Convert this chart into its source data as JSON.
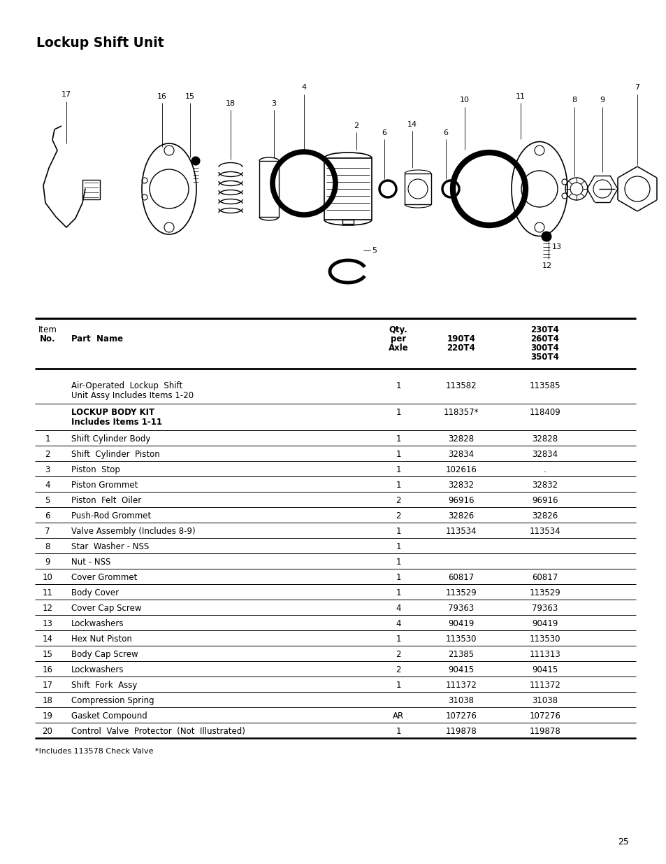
{
  "title": "Lockup Shift Unit",
  "page_number": "25",
  "footnote": "*Includes 113578 Check Valve",
  "rows": [
    {
      "item": "",
      "name": "Air-Operated  Lockup  Shift\nUnit Assy Includes Items 1-20",
      "qty": "1",
      "col4": "113582",
      "col5": "113585",
      "name_bold": false
    },
    {
      "item": "",
      "name": "LOCKUP BODY KIT\nIncludes Items 1-11",
      "qty": "1",
      "col4": "118357*",
      "col5": "118409",
      "name_bold": true
    },
    {
      "item": "1",
      "name": "Shift Cylinder Body",
      "qty": "1",
      "col4": "32828",
      "col5": "32828",
      "name_bold": false
    },
    {
      "item": "2",
      "name": "Shift  Cylinder  Piston",
      "qty": "1",
      "col4": "32834",
      "col5": "32834",
      "name_bold": false
    },
    {
      "item": "3",
      "name": "Piston  Stop",
      "qty": "1",
      "col4": "102616",
      "col5": ".",
      "name_bold": false
    },
    {
      "item": "4",
      "name": "Piston Grommet",
      "qty": "1",
      "col4": "32832",
      "col5": "32832",
      "name_bold": false
    },
    {
      "item": "5",
      "name": "Piston  Felt  Oiler",
      "qty": "2",
      "col4": "96916",
      "col5": "96916",
      "name_bold": false
    },
    {
      "item": "6",
      "name": "Push-Rod Grommet",
      "qty": "2",
      "col4": "32826",
      "col5": "32826",
      "name_bold": false
    },
    {
      "item": "7",
      "name": "Valve Assembly (Includes 8-9)",
      "qty": "1",
      "col4": "113534",
      "col5": "113534",
      "name_bold": false
    },
    {
      "item": "8",
      "name": "Star  Washer - NSS",
      "qty": "1",
      "col4": "",
      "col5": "",
      "name_bold": false
    },
    {
      "item": "9",
      "name": "Nut - NSS",
      "qty": "1",
      "col4": "",
      "col5": "",
      "name_bold": false
    },
    {
      "item": "10",
      "name": "Cover Grommet",
      "qty": "1",
      "col4": "60817",
      "col5": "60817",
      "name_bold": false
    },
    {
      "item": "11",
      "name": "Body Cover",
      "qty": "1",
      "col4": "113529",
      "col5": "113529",
      "name_bold": false
    },
    {
      "item": "12",
      "name": "Cover Cap Screw",
      "qty": "4",
      "col4": "79363",
      "col5": "79363",
      "name_bold": false
    },
    {
      "item": "13",
      "name": "Lockwashers",
      "qty": "4",
      "col4": "90419",
      "col5": "90419",
      "name_bold": false
    },
    {
      "item": "14",
      "name": "Hex Nut Piston",
      "qty": "1",
      "col4": "113530",
      "col5": "113530",
      "name_bold": false
    },
    {
      "item": "15",
      "name": "Body Cap Screw",
      "qty": "2",
      "col4": "21385",
      "col5": "111313",
      "name_bold": false
    },
    {
      "item": "16",
      "name": "Lockwashers",
      "qty": "2",
      "col4": "90415",
      "col5": "90415",
      "name_bold": false
    },
    {
      "item": "17",
      "name": "Shift  Fork  Assy",
      "qty": "1",
      "col4": "111372",
      "col5": "111372",
      "name_bold": false
    },
    {
      "item": "18",
      "name": "Compression Spring",
      "qty": "",
      "col4": "31038",
      "col5": "31038",
      "name_bold": false
    },
    {
      "item": "19",
      "name": "Gasket Compound",
      "qty": "AR",
      "col4": "107276",
      "col5": "107276",
      "name_bold": false
    },
    {
      "item": "20",
      "name": "Control  Valve  Protector  (Not  Illustrated)",
      "qty": "1",
      "col4": "119878",
      "col5": "119878",
      "name_bold": false
    }
  ],
  "bg_color": "#ffffff",
  "text_color": "#000000",
  "lc": "#000000"
}
